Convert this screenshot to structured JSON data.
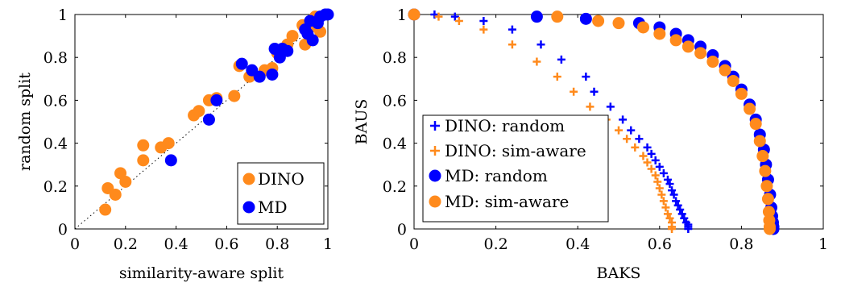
{
  "chart_data": [
    {
      "type": "scatter",
      "xlabel": "similarity-aware split",
      "ylabel": "random split",
      "xlim": [
        0,
        1
      ],
      "ylim": [
        0,
        1
      ],
      "xticks": [
        "0",
        "0.2",
        "0.4",
        "0.6",
        "0.8",
        "1"
      ],
      "yticks": [
        "0",
        "0.2",
        "0.4",
        "0.6",
        "0.8",
        "1"
      ],
      "grid": false,
      "diagonal_reference": "dotted y = x",
      "legend_placement": "bottom-right",
      "colors": {
        "DINO": "#ff8a1c",
        "MD": "#0000ff"
      },
      "series": [
        {
          "name": "DINO",
          "x": [
            0.12,
            0.13,
            0.16,
            0.18,
            0.2,
            0.27,
            0.27,
            0.34,
            0.37,
            0.47,
            0.49,
            0.53,
            0.56,
            0.63,
            0.65,
            0.69,
            0.75,
            0.78,
            0.8,
            0.83,
            0.84,
            0.86,
            0.9,
            0.91,
            0.93,
            0.95,
            0.97
          ],
          "y": [
            0.09,
            0.19,
            0.16,
            0.26,
            0.22,
            0.32,
            0.39,
            0.38,
            0.4,
            0.53,
            0.55,
            0.6,
            0.61,
            0.62,
            0.76,
            0.71,
            0.74,
            0.75,
            0.82,
            0.83,
            0.86,
            0.9,
            0.95,
            0.86,
            0.94,
            0.99,
            0.92
          ]
        },
        {
          "name": "MD",
          "x": [
            0.38,
            0.53,
            0.56,
            0.66,
            0.7,
            0.73,
            0.78,
            0.79,
            0.81,
            0.82,
            0.84,
            0.91,
            0.92,
            0.93,
            0.94,
            0.96,
            0.97,
            0.99,
            1.0
          ],
          "y": [
            0.32,
            0.51,
            0.6,
            0.77,
            0.74,
            0.71,
            0.72,
            0.84,
            0.8,
            0.84,
            0.83,
            0.93,
            0.91,
            0.97,
            0.88,
            0.96,
            0.99,
            1.0,
            1.0
          ]
        }
      ]
    },
    {
      "type": "scatter",
      "xlabel": "BAKS",
      "ylabel": "BAUS",
      "xlim": [
        0,
        1
      ],
      "ylim": [
        0,
        1
      ],
      "xticks": [
        "0",
        "0.2",
        "0.4",
        "0.6",
        "0.8",
        "1"
      ],
      "yticks": [
        "0",
        "0.2",
        "0.4",
        "0.6",
        "0.8",
        "1"
      ],
      "grid": false,
      "legend_placement": "bottom-left",
      "colors": {
        "DINO: random": "#0000ff",
        "DINO: sim-aware": "#ff8a1c",
        "MD: random": "#0000ff",
        "MD: sim-aware": "#ff8a1c"
      },
      "series": [
        {
          "name": "DINO: random",
          "marker": "plus",
          "x": [
            0.0,
            0.05,
            0.1,
            0.17,
            0.24,
            0.31,
            0.36,
            0.42,
            0.44,
            0.48,
            0.51,
            0.53,
            0.55,
            0.57,
            0.58,
            0.59,
            0.6,
            0.61,
            0.62,
            0.625,
            0.63,
            0.635,
            0.64,
            0.645,
            0.65,
            0.655,
            0.66,
            0.665,
            0.67,
            0.67,
            0.67
          ],
          "y": [
            1.0,
            1.0,
            0.99,
            0.97,
            0.93,
            0.86,
            0.79,
            0.71,
            0.64,
            0.57,
            0.51,
            0.46,
            0.42,
            0.38,
            0.35,
            0.32,
            0.29,
            0.26,
            0.23,
            0.21,
            0.18,
            0.16,
            0.13,
            0.11,
            0.09,
            0.07,
            0.05,
            0.03,
            0.02,
            0.01,
            0.0
          ]
        },
        {
          "name": "DINO: sim-aware",
          "marker": "plus",
          "x": [
            0.0,
            0.06,
            0.11,
            0.17,
            0.24,
            0.3,
            0.35,
            0.39,
            0.43,
            0.47,
            0.5,
            0.52,
            0.54,
            0.56,
            0.57,
            0.58,
            0.59,
            0.595,
            0.6,
            0.605,
            0.61,
            0.615,
            0.62,
            0.625,
            0.63,
            0.63,
            0.63
          ],
          "y": [
            1.0,
            0.99,
            0.97,
            0.93,
            0.86,
            0.78,
            0.71,
            0.64,
            0.57,
            0.51,
            0.46,
            0.42,
            0.38,
            0.34,
            0.31,
            0.28,
            0.25,
            0.22,
            0.19,
            0.16,
            0.13,
            0.1,
            0.07,
            0.05,
            0.03,
            0.01,
            0.0
          ]
        },
        {
          "name": "MD: random",
          "marker": "circle",
          "x": [
            0.0,
            0.3,
            0.42,
            0.55,
            0.6,
            0.64,
            0.67,
            0.7,
            0.73,
            0.76,
            0.78,
            0.8,
            0.82,
            0.835,
            0.845,
            0.855,
            0.86,
            0.865,
            0.87,
            0.873,
            0.875,
            0.877,
            0.878,
            0.878
          ],
          "y": [
            1.0,
            0.99,
            0.98,
            0.96,
            0.94,
            0.91,
            0.88,
            0.85,
            0.81,
            0.76,
            0.71,
            0.65,
            0.58,
            0.51,
            0.44,
            0.37,
            0.3,
            0.23,
            0.16,
            0.1,
            0.06,
            0.03,
            0.01,
            0.0
          ]
        },
        {
          "name": "MD: sim-aware",
          "marker": "circle",
          "x": [
            0.0,
            0.35,
            0.45,
            0.5,
            0.56,
            0.6,
            0.64,
            0.67,
            0.7,
            0.73,
            0.76,
            0.78,
            0.8,
            0.82,
            0.835,
            0.845,
            0.852,
            0.858,
            0.862,
            0.865,
            0.867,
            0.868,
            0.869,
            0.869
          ],
          "y": [
            1.0,
            0.99,
            0.97,
            0.96,
            0.94,
            0.91,
            0.88,
            0.85,
            0.82,
            0.78,
            0.74,
            0.69,
            0.63,
            0.56,
            0.49,
            0.41,
            0.34,
            0.27,
            0.2,
            0.14,
            0.08,
            0.04,
            0.01,
            0.0
          ]
        }
      ]
    }
  ]
}
